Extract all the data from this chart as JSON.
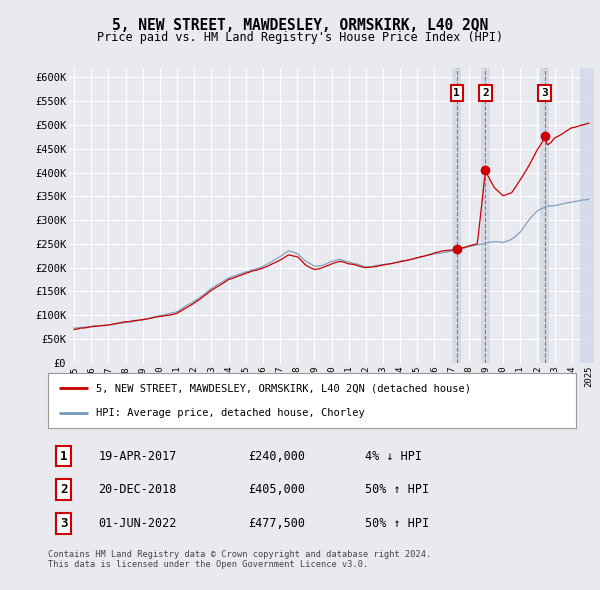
{
  "title": "5, NEW STREET, MAWDESLEY, ORMSKIRK, L40 2QN",
  "subtitle": "Price paid vs. HM Land Registry's House Price Index (HPI)",
  "ylabel_ticks": [
    "£0",
    "£50K",
    "£100K",
    "£150K",
    "£200K",
    "£250K",
    "£300K",
    "£350K",
    "£400K",
    "£450K",
    "£500K",
    "£550K",
    "£600K"
  ],
  "ytick_values": [
    0,
    50000,
    100000,
    150000,
    200000,
    250000,
    300000,
    350000,
    400000,
    450000,
    500000,
    550000,
    600000
  ],
  "ylim": [
    0,
    620000
  ],
  "xlim_start": 1994.7,
  "xlim_end": 2025.3,
  "xtick_years": [
    1995,
    1996,
    1997,
    1998,
    1999,
    2000,
    2001,
    2002,
    2003,
    2004,
    2005,
    2006,
    2007,
    2008,
    2009,
    2010,
    2011,
    2012,
    2013,
    2014,
    2015,
    2016,
    2017,
    2018,
    2019,
    2020,
    2021,
    2022,
    2023,
    2024,
    2025
  ],
  "hpi_color": "#7799bb",
  "price_color": "#cc0000",
  "sale1_date": 2017.3,
  "sale1_price": 240000,
  "sale2_date": 2018.97,
  "sale2_price": 405000,
  "sale3_date": 2022.42,
  "sale3_price": 477500,
  "legend_line1": "5, NEW STREET, MAWDESLEY, ORMSKIRK, L40 2QN (detached house)",
  "legend_line2": "HPI: Average price, detached house, Chorley",
  "footer": "Contains HM Land Registry data © Crown copyright and database right 2024.\nThis data is licensed under the Open Government Licence v3.0.",
  "background_color": "#e8eaf0",
  "plot_bg_color": "#e8eaf0",
  "grid_color": "#ffffff",
  "shade_color": "#c8d0df",
  "hatch_end_color": "#d0d8e8"
}
